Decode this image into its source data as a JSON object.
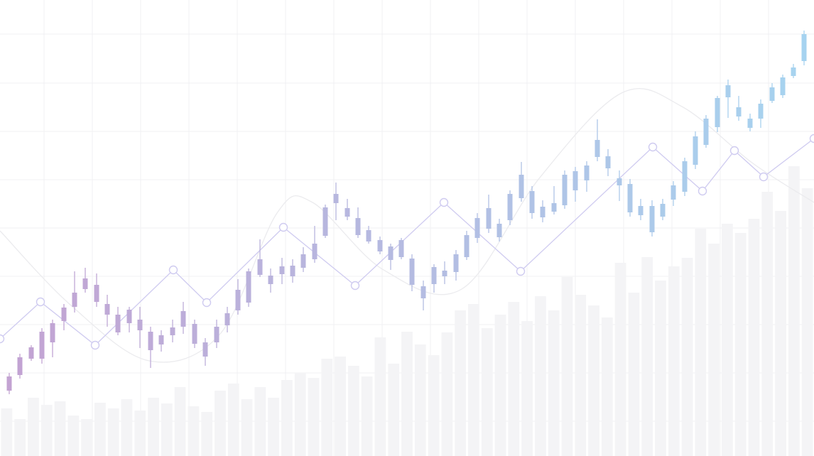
{
  "chart_data": [
    {
      "type": "bar",
      "color": "#f4f4f6",
      "xlim": [
        0,
        1146
      ],
      "ylim": [
        0,
        642
      ],
      "xticks": [
        62,
        130,
        198,
        266,
        334,
        402,
        470,
        538,
        606,
        674,
        742,
        810,
        878,
        946,
        1014,
        1082
      ],
      "yticks": [
        49,
        117,
        185,
        253,
        321,
        389,
        457,
        525,
        594
      ],
      "grid": true,
      "grid_color": "#f1f1f3",
      "categories": [
        null,
        null,
        null,
        null,
        null,
        null,
        null,
        null,
        null,
        null,
        null,
        null,
        null,
        null,
        null,
        null,
        null,
        null,
        null,
        null,
        null,
        null,
        null,
        null,
        null,
        null,
        null,
        null,
        null,
        null,
        null,
        null,
        null,
        null,
        null,
        null,
        null,
        null,
        null,
        null,
        null,
        null,
        null,
        null,
        null,
        null,
        null,
        null,
        null,
        null,
        null,
        null,
        null,
        null,
        null,
        null,
        null,
        null,
        null,
        null,
        null
      ],
      "values": [
        67,
        52,
        82,
        72,
        77,
        57,
        52,
        75,
        67,
        80,
        64,
        82,
        74,
        97,
        70,
        62,
        92,
        102,
        80,
        97,
        82,
        107,
        117,
        110,
        137,
        140,
        127,
        112,
        167,
        130,
        175,
        157,
        142,
        174,
        205,
        214,
        180,
        199,
        217,
        190,
        225,
        205,
        252,
        227,
        212,
        195,
        272,
        230,
        280,
        247,
        267,
        279,
        320,
        299,
        327,
        314,
        334,
        372,
        345,
        408,
        377
      ]
    },
    {
      "type": "line",
      "smooth": true,
      "color": "#ebebee",
      "xlim": [
        0,
        1146
      ],
      "ylim": [
        0,
        642
      ],
      "markers": false,
      "x": [
        0,
        100,
        210,
        310,
        390,
        440,
        540,
        650,
        760,
        875,
        960,
        1060,
        1146
      ],
      "values": [
        317,
        212,
        134,
        172,
        342,
        357,
        262,
        235,
        392,
        511,
        492,
        412,
        357
      ]
    },
    {
      "type": "line",
      "smooth": false,
      "color": "#cfcbf0",
      "xlim": [
        0,
        1146
      ],
      "ylim": [
        0,
        642
      ],
      "markers": true,
      "x": [
        0,
        57,
        134,
        244,
        291,
        399,
        500,
        625,
        733,
        919,
        989,
        1034,
        1075,
        1146
      ],
      "values": [
        165,
        217,
        156,
        262,
        216,
        322,
        240,
        357,
        260,
        435,
        373,
        430,
        393,
        447
      ]
    },
    {
      "type": "candlestick",
      "colors": [
        "#c3a2d2",
        "#a6d4f0"
      ],
      "xlim": [
        0,
        1146
      ],
      "ylim": [
        0,
        642
      ],
      "x": [
        13,
        28,
        44,
        59,
        74,
        90,
        105,
        120,
        136,
        151,
        166,
        182,
        197,
        212,
        227,
        243,
        258,
        274,
        289,
        305,
        320,
        335,
        350,
        366,
        381,
        397,
        412,
        427,
        443,
        458,
        473,
        489,
        504,
        519,
        535,
        550,
        565,
        580,
        596,
        611,
        626,
        642,
        657,
        672,
        688,
        703,
        718,
        734,
        749,
        764,
        780,
        795,
        810,
        826,
        841,
        856,
        872,
        887,
        902,
        918,
        933,
        948,
        964,
        979,
        994,
        1010,
        1025,
        1040,
        1056,
        1071,
        1087,
        1102,
        1117,
        1132
      ],
      "open": [
        92,
        114,
        137,
        137,
        160,
        190,
        210,
        235,
        217,
        199,
        174,
        187,
        177,
        149,
        157,
        170,
        182,
        158,
        140,
        160,
        184,
        205,
        216,
        255,
        242,
        256,
        253,
        265,
        277,
        310,
        356,
        337,
        311,
        302,
        288,
        276,
        280,
        241,
        222,
        242,
        253,
        259,
        280,
        307,
        320,
        308,
        332,
        363,
        342,
        336,
        344,
        353,
        374,
        388,
        421,
        405,
        381,
        343,
        339,
        315,
        337,
        361,
        372,
        410,
        438,
        463,
        505,
        478,
        462,
        475,
        500,
        508,
        535,
        556
      ],
      "high": [
        117,
        144,
        156,
        180,
        192,
        214,
        260,
        265,
        257,
        227,
        210,
        210,
        210,
        182,
        177,
        192,
        217,
        192,
        166,
        192,
        210,
        249,
        264,
        305,
        264,
        279,
        277,
        294,
        324,
        354,
        385,
        362,
        350,
        324,
        309,
        299,
        307,
        284,
        247,
        270,
        274,
        290,
        317,
        342,
        368,
        334,
        374,
        414,
        380,
        360,
        380,
        402,
        407,
        415,
        474,
        432,
        402,
        390,
        362,
        360,
        362,
        387,
        420,
        457,
        480,
        507,
        530,
        507,
        482,
        502,
        525,
        537,
        552,
        599
      ],
      "low": [
        87,
        109,
        134,
        130,
        139,
        177,
        202,
        230,
        210,
        182,
        170,
        174,
        152,
        124,
        147,
        160,
        172,
        152,
        127,
        152,
        174,
        199,
        210,
        252,
        230,
        242,
        244,
        259,
        272,
        307,
        332,
        332,
        307,
        299,
        284,
        262,
        277,
        232,
        205,
        230,
        242,
        247,
        276,
        300,
        314,
        302,
        325,
        358,
        334,
        329,
        340,
        348,
        358,
        372,
        415,
        394,
        359,
        337,
        332,
        309,
        332,
        352,
        366,
        404,
        434,
        456,
        476,
        472,
        457,
        462,
        497,
        504,
        532,
        550
      ],
      "close": [
        112,
        139,
        153,
        175,
        187,
        209,
        230,
        250,
        241,
        214,
        199,
        206,
        192,
        175,
        170,
        181,
        204,
        186,
        160,
        182,
        201,
        234,
        260,
        277,
        254,
        267,
        268,
        284,
        299,
        350,
        369,
        349,
        335,
        318,
        304,
        295,
        304,
        278,
        239,
        266,
        261,
        284,
        311,
        335,
        349,
        327,
        369,
        396,
        373,
        351,
        356,
        396,
        401,
        409,
        445,
        422,
        391,
        383,
        352,
        352,
        355,
        381,
        415,
        450,
        475,
        504,
        522,
        491,
        475,
        496,
        519,
        533,
        547,
        594
      ]
    }
  ]
}
